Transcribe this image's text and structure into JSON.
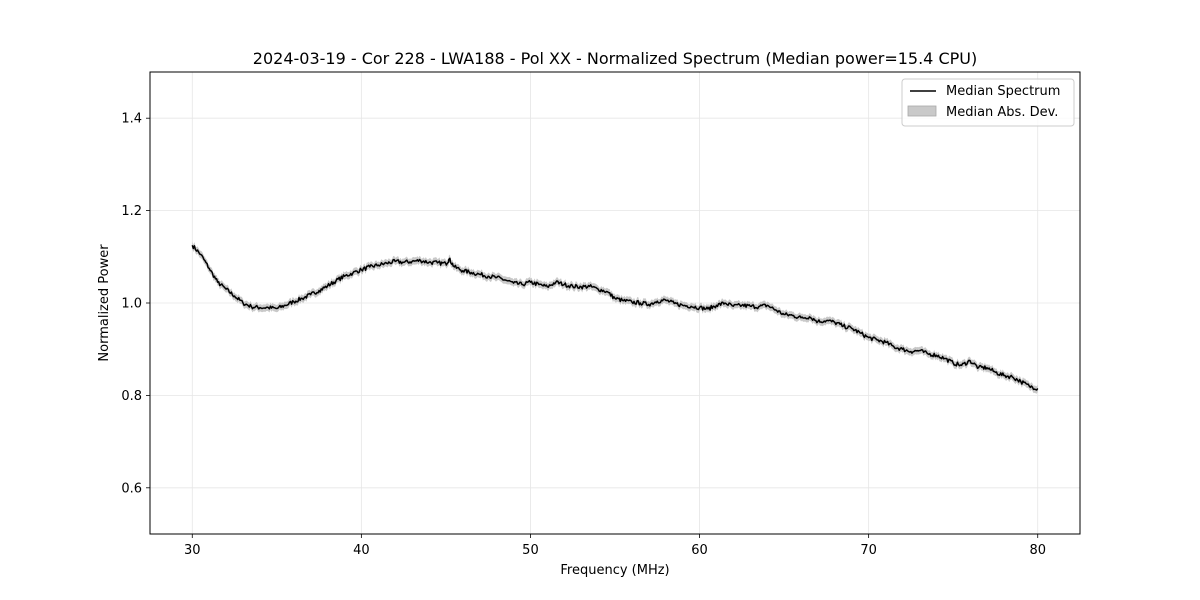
{
  "chart_data": {
    "type": "line",
    "title": "2024-03-19 - Cor 228 - LWA188 - Pol XX - Normalized Spectrum (Median power=15.4 CPU)",
    "xlabel": "Frequency (MHz)",
    "ylabel": "Normalized Power",
    "xlim": [
      27.5,
      82.5
    ],
    "ylim": [
      0.5,
      1.5
    ],
    "xticks": [
      30,
      40,
      50,
      60,
      70,
      80
    ],
    "yticks": [
      0.6,
      0.8,
      1.0,
      1.2,
      1.4
    ],
    "xtick_labels": [
      "30",
      "40",
      "50",
      "60",
      "70",
      "80"
    ],
    "ytick_labels": [
      "0.6",
      "0.8",
      "1.0",
      "1.2",
      "1.4"
    ],
    "grid": true,
    "legend": {
      "position": "top-right",
      "entries": [
        {
          "label": "Median Spectrum",
          "kind": "line",
          "color": "#000000"
        },
        {
          "label": "Median Abs. Dev.",
          "kind": "band",
          "color": "#bfbfbf"
        }
      ]
    },
    "series": [
      {
        "name": "Median Spectrum",
        "mad_halfwidth": 0.008,
        "x": [
          30.0,
          30.5,
          31.0,
          31.5,
          32.0,
          32.5,
          33.0,
          33.5,
          34.0,
          34.5,
          35.0,
          35.5,
          36.0,
          36.5,
          37.0,
          37.5,
          38.0,
          38.5,
          39.0,
          39.5,
          40.0,
          40.5,
          41.0,
          41.5,
          42.0,
          42.5,
          43.0,
          43.5,
          44.0,
          44.5,
          45.0,
          45.2,
          45.5,
          46.0,
          46.5,
          47.0,
          47.5,
          48.0,
          48.5,
          49.0,
          49.5,
          50.0,
          50.5,
          51.0,
          51.5,
          52.0,
          52.5,
          53.0,
          53.5,
          54.0,
          54.5,
          55.0,
          55.5,
          56.0,
          56.5,
          57.0,
          57.5,
          58.0,
          58.5,
          59.0,
          59.5,
          60.0,
          60.5,
          61.0,
          61.5,
          62.0,
          62.5,
          63.0,
          63.5,
          64.0,
          64.5,
          65.0,
          65.5,
          66.0,
          66.5,
          67.0,
          67.5,
          68.0,
          68.5,
          69.0,
          69.5,
          70.0,
          70.5,
          71.0,
          71.5,
          72.0,
          72.5,
          73.0,
          73.5,
          74.0,
          74.5,
          75.0,
          75.5,
          76.0,
          76.5,
          77.0,
          77.5,
          78.0,
          78.5,
          79.0,
          79.5,
          80.0
        ],
        "y": [
          1.125,
          1.105,
          1.075,
          1.045,
          1.03,
          1.015,
          1.0,
          0.992,
          0.99,
          0.99,
          0.988,
          0.995,
          1.003,
          1.01,
          1.018,
          1.027,
          1.037,
          1.048,
          1.058,
          1.065,
          1.072,
          1.078,
          1.082,
          1.086,
          1.09,
          1.088,
          1.09,
          1.092,
          1.088,
          1.087,
          1.085,
          1.095,
          1.078,
          1.07,
          1.066,
          1.062,
          1.058,
          1.055,
          1.05,
          1.043,
          1.04,
          1.045,
          1.04,
          1.035,
          1.045,
          1.04,
          1.036,
          1.035,
          1.036,
          1.03,
          1.025,
          1.01,
          1.005,
          1.002,
          1.0,
          0.997,
          1.004,
          1.006,
          0.999,
          0.995,
          0.993,
          0.99,
          0.987,
          0.995,
          1.0,
          0.993,
          0.995,
          0.993,
          0.992,
          0.995,
          0.985,
          0.975,
          0.973,
          0.968,
          0.97,
          0.96,
          0.962,
          0.958,
          0.95,
          0.945,
          0.935,
          0.925,
          0.92,
          0.915,
          0.905,
          0.9,
          0.895,
          0.897,
          0.89,
          0.887,
          0.88,
          0.87,
          0.865,
          0.875,
          0.86,
          0.86,
          0.85,
          0.843,
          0.84,
          0.83,
          0.82,
          0.815
        ]
      }
    ]
  }
}
